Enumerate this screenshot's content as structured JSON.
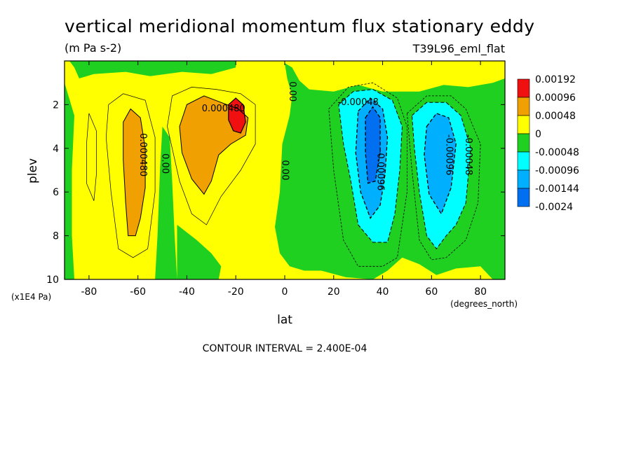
{
  "chart_data": {
    "type": "heatmap",
    "title": "vertical meridional momentum flux stationary eddy",
    "units_label": "(m Pa s-2)",
    "run_label": "T39L96_eml_flat",
    "xlabel": "lat",
    "ylabel": "plev",
    "x_units_label": "(degrees_north)",
    "y_units_label": "(x1E4 Pa)",
    "xlim": [
      -90,
      90
    ],
    "ylim": [
      0,
      10
    ],
    "y_inverted": true,
    "x_ticks": [
      -80,
      -60,
      -40,
      -20,
      0,
      20,
      40,
      60,
      80
    ],
    "x_tick_labels": [
      "-80",
      "-60",
      "-40",
      "-20",
      "0",
      "20",
      "40",
      "60",
      "80"
    ],
    "y_ticks": [
      2,
      4,
      6,
      8,
      10
    ],
    "y_tick_labels": [
      "2",
      "4",
      "6",
      "8",
      "10"
    ],
    "contour_interval_text": "CONTOUR INTERVAL = 2.400E-04",
    "colorbar": {
      "levels": [
        "0.00192",
        "0.00096",
        "0.00048",
        "0",
        "-0.00048",
        "-0.00096",
        "-0.00144",
        "-0.0024"
      ],
      "colors": [
        "#f01010",
        "#f0a000",
        "#ffff00",
        "#20d020",
        "#00ffff",
        "#00b0ff",
        "#0070f0"
      ],
      "level_descriptions": [
        ">=0.00096",
        "0.00048 to 0.00096",
        "0 to 0.00048",
        "-0.00048 to 0",
        "-0.00096 to -0.00048",
        "-0.00144 to -0.00096",
        "<=-0.00144"
      ]
    },
    "features": [
      {
        "kind": "positive_max",
        "lat": -20,
        "plev": 2.7,
        "value_range": ">0.00096"
      },
      {
        "kind": "positive_lobe",
        "lat": -30,
        "plev": 3.5,
        "value_range": "0.00048 to 0.00096"
      },
      {
        "kind": "positive_lobe",
        "lat": -62,
        "plev": 5,
        "value_range": "0.00048 to 0.00096"
      },
      {
        "kind": "negative_min",
        "lat": 35,
        "plev": 4.5,
        "value_range": "<-0.00144"
      },
      {
        "kind": "negative_min",
        "lat": 65,
        "plev": 4.5,
        "value_range": "-0.00144 to -0.00096"
      }
    ],
    "contour_labels": [
      {
        "text": "0.000480",
        "lat": -25,
        "plev": 2.2,
        "angle": 0
      },
      {
        "text": "0.000480",
        "lat": -58,
        "plev": 4.3,
        "angle": 90
      },
      {
        "text": "0.00",
        "lat": -49,
        "plev": 4.7,
        "angle": 90
      },
      {
        "text": "0.00",
        "lat": 0,
        "plev": 5.0,
        "angle": 90
      },
      {
        "text": "0.00",
        "lat": 3,
        "plev": 1.4,
        "angle": 90
      },
      {
        "text": "-0.00048",
        "lat": 30,
        "plev": 1.9,
        "angle": 0
      },
      {
        "text": "-0.00096",
        "lat": 39,
        "plev": 5.0,
        "angle": 90
      },
      {
        "text": "-0.00096",
        "lat": 67,
        "plev": 4.3,
        "angle": 90
      },
      {
        "text": "-0.00048",
        "lat": 75,
        "plev": 4.3,
        "angle": 90
      }
    ]
  }
}
